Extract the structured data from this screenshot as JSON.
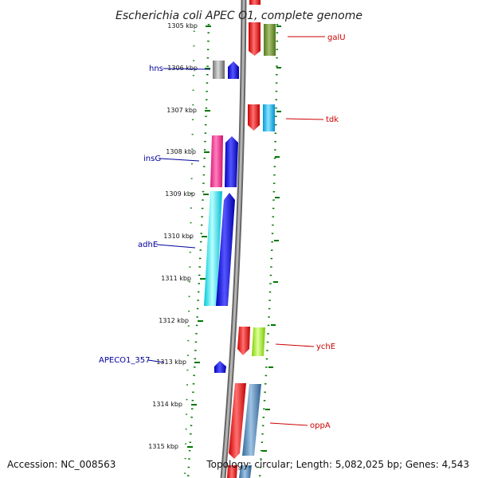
{
  "title": "Escherichia coli APEC O1, complete genome",
  "footer": {
    "accession": "Accession: NC_008563",
    "summary": "Topology: circular; Length: 5,082,025 bp; Genes: 4,543"
  },
  "kbp_ticks": [
    "1305 kbp",
    "1306 kbp",
    "1307 kbp",
    "1308 kbp",
    "1309 kbp",
    "1310 kbp",
    "1311 kbp",
    "1312 kbp",
    "1313 kbp",
    "1314 kbp",
    "1315 kbp"
  ],
  "gene_labels": {
    "hns": "hns",
    "insG": "insG",
    "adhE": "adhE",
    "apeco1": "APECO1_357",
    "galU": "galU",
    "tdk": "tdk",
    "ychE": "ychE",
    "oppA": "oppA"
  },
  "colors": {
    "backbone": "#808080",
    "forward_cds": "#ff0000",
    "reverse_cds": "#0000ee",
    "label_left": "#000099",
    "label_right": "#cc0000",
    "dotted_track": "#007700"
  }
}
